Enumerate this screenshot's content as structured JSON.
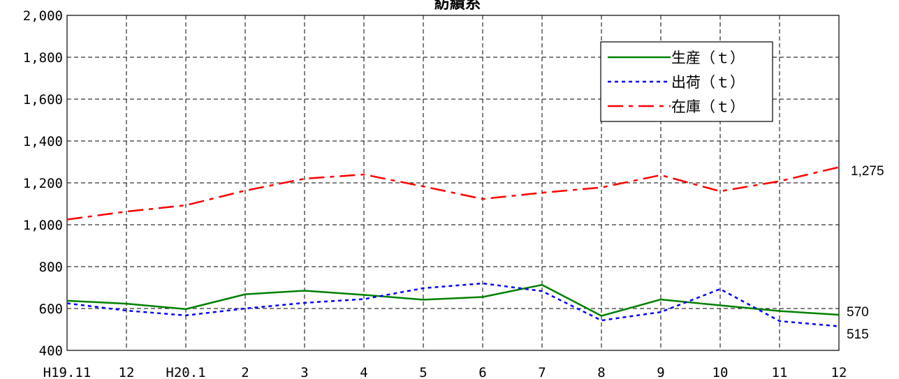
{
  "chart_data": {
    "type": "line",
    "title": "紡績糸",
    "categories": [
      "H19.11",
      "12",
      "H20.1",
      "2",
      "3",
      "4",
      "5",
      "6",
      "7",
      "8",
      "9",
      "10",
      "11",
      "12"
    ],
    "ylim": [
      400,
      2000
    ],
    "yticks": [
      400,
      600,
      800,
      1000,
      1200,
      1400,
      1600,
      1800,
      2000
    ],
    "ytick_labels": [
      "400",
      "600",
      "800",
      "1,000",
      "1,200",
      "1,400",
      "1,600",
      "1,800",
      "2,000"
    ],
    "grid": true,
    "legend_position": "top-right",
    "series": [
      {
        "name": "生産（ｔ）",
        "color": "#008000",
        "style": "solid",
        "values": [
          637,
          623,
          597,
          668,
          685,
          665,
          642,
          655,
          713,
          565,
          643,
          615,
          588,
          570
        ]
      },
      {
        "name": "出荷（ｔ）",
        "color": "#0000ff",
        "style": "dotted",
        "values": [
          625,
          590,
          567,
          600,
          627,
          645,
          697,
          720,
          683,
          543,
          583,
          693,
          540,
          515
        ]
      },
      {
        "name": "在庫（ｔ）",
        "color": "#ff0000",
        "style": "dashdot",
        "values": [
          1025,
          1063,
          1093,
          1163,
          1220,
          1240,
          1183,
          1123,
          1153,
          1178,
          1237,
          1160,
          1208,
          1275
        ]
      }
    ],
    "end_labels": [
      "570",
      "515",
      "1,275"
    ]
  }
}
